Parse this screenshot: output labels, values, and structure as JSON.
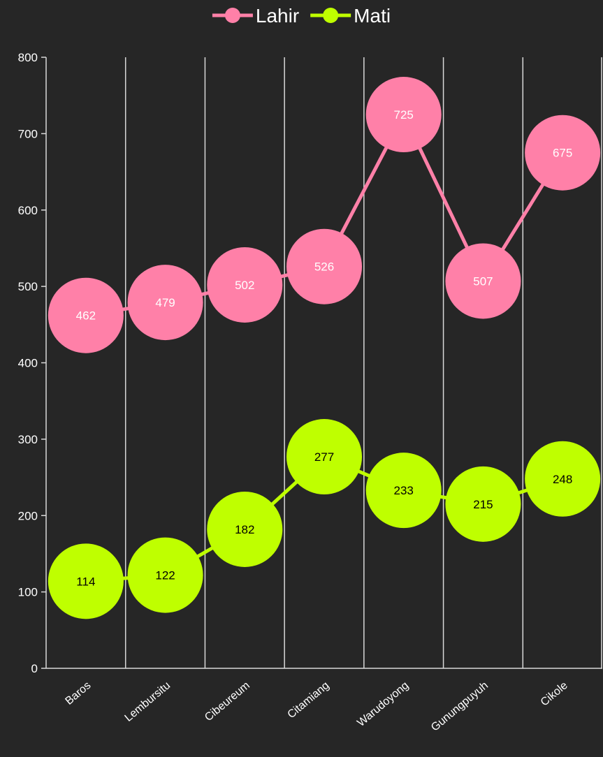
{
  "chart_data": {
    "type": "line",
    "categories": [
      "Baros",
      "Lembursitu",
      "Cibeureum",
      "Citamiang",
      "Warudoyong",
      "Gunungpuyuh",
      "Cikole"
    ],
    "series": [
      {
        "name": "Lahir",
        "color": "#FF80A8",
        "label_color": "#FFFFFF",
        "values": [
          462,
          479,
          502,
          526,
          725,
          507,
          675
        ]
      },
      {
        "name": "Mati",
        "color": "#BFFF00",
        "label_color": "#000000",
        "values": [
          114,
          122,
          182,
          277,
          233,
          215,
          248
        ]
      }
    ],
    "ylim": [
      0,
      800
    ],
    "yticks": [
      0,
      100,
      200,
      300,
      400,
      500,
      600,
      700,
      800
    ],
    "grid": "vertical",
    "legend": "top",
    "colors": {
      "background": "#262626",
      "axis": "#D9D9D9",
      "text": "#FFFFFF"
    }
  }
}
